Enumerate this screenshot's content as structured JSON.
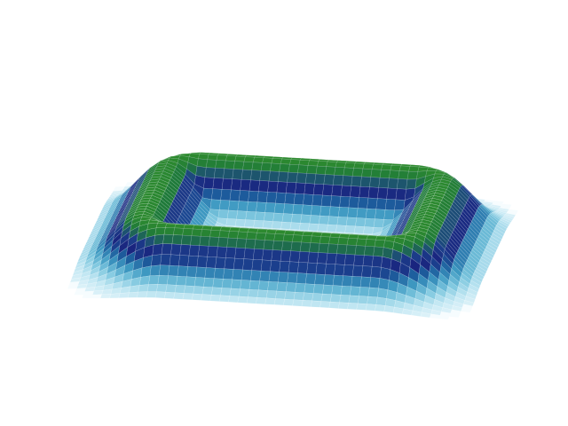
{
  "scene": {
    "kind": "3d-surface-mesh",
    "shape": "rounded-rectangular-ring",
    "background_color": "#ffffff",
    "colormap": [
      "#e8f6fb",
      "#bfe6f2",
      "#7cc6de",
      "#3f9ac2",
      "#1d5f9e",
      "#1a237e",
      "#1c3f8a",
      "#1f7a3a",
      "#2e8b2e"
    ],
    "ridge_color": "#2e8b2e",
    "edge_color": "#ffffff"
  }
}
